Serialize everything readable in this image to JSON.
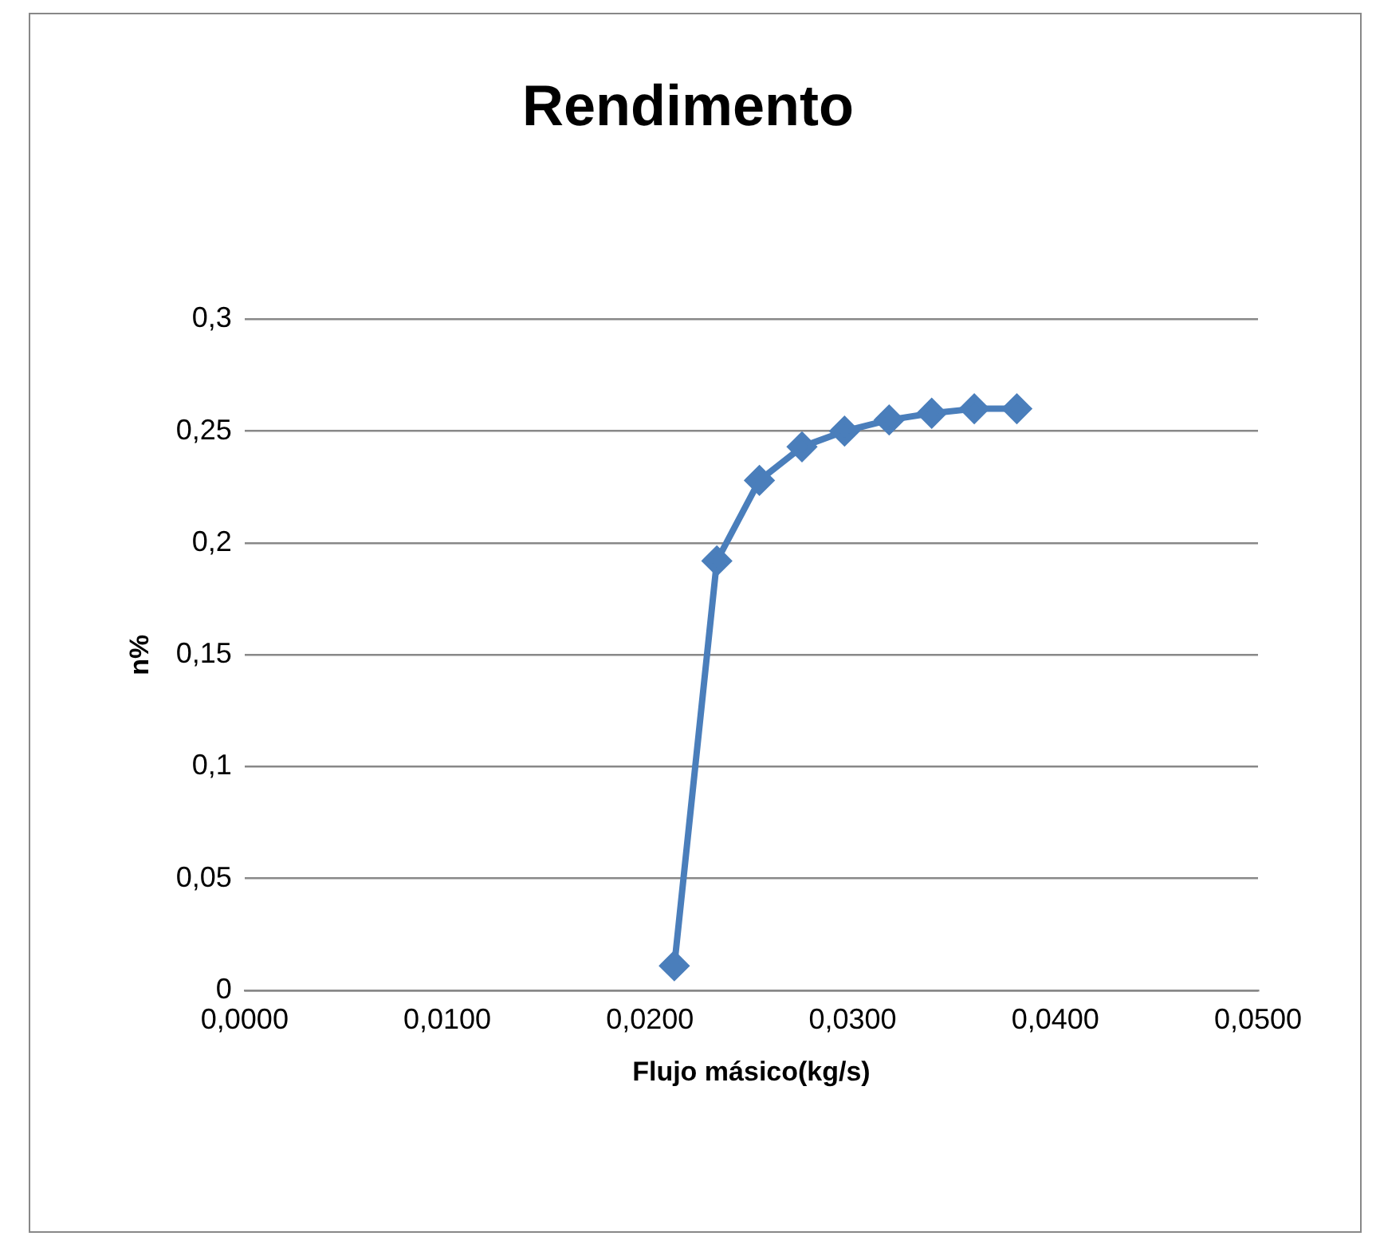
{
  "chart_data": {
    "type": "line",
    "title": "Rendimento",
    "xlabel": "Flujo másico(kg/s)",
    "ylabel": "n%",
    "x": [
      0.0212,
      0.0233,
      0.0254,
      0.0275,
      0.0296,
      0.0318,
      0.0339,
      0.036,
      0.0381
    ],
    "series": [
      {
        "color": "#4a7ebb",
        "values": [
          0.011,
          0.192,
          0.228,
          0.243,
          0.25,
          0.255,
          0.258,
          0.26,
          0.26
        ]
      }
    ],
    "xlim": [
      0,
      0.05
    ],
    "xticks": [
      {
        "value": 0,
        "label": "0,0000"
      },
      {
        "value": 0.01,
        "label": "0,0100"
      },
      {
        "value": 0.02,
        "label": "0,0200"
      },
      {
        "value": 0.03,
        "label": "0,0300"
      },
      {
        "value": 0.04,
        "label": "0,0400"
      },
      {
        "value": 0.05,
        "label": "0,0500"
      }
    ],
    "ylim": [
      0,
      0.3
    ],
    "yticks": [
      0,
      {
        "value": 0.05,
        "label": "0,05"
      },
      {
        "value": 0.1,
        "label": "0,1"
      },
      {
        "value": 0.15,
        "label": "0,15"
      },
      {
        "value": 0.2,
        "label": "0,2"
      },
      {
        "value": 0.25,
        "label": "0,25"
      },
      {
        "value": 0.3,
        "label": "0,3"
      }
    ],
    "grid": "y",
    "legend": false,
    "marker": "diamond",
    "line_style": "solid"
  }
}
